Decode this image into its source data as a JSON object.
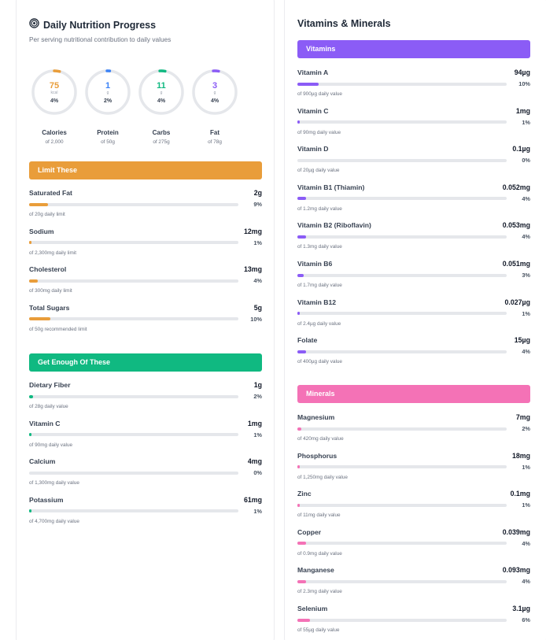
{
  "colors": {
    "orange": "#e99d3a",
    "blue": "#3b82f6",
    "green": "#10b981",
    "purple": "#8b5cf6",
    "pink": "#f472b6",
    "track": "#e5e7eb"
  },
  "left": {
    "title": "Daily Nutrition Progress",
    "title_icon": "target-icon",
    "subtitle": "Per serving nutritional contribution to daily values",
    "rings": [
      {
        "value": "75",
        "unit": "kcal",
        "pct": "4%",
        "pct_num": 4,
        "name": "Calories",
        "of": "of 2,000",
        "color": "#e99d3a"
      },
      {
        "value": "1",
        "unit": "g",
        "pct": "2%",
        "pct_num": 2,
        "name": "Protein",
        "of": "of 50g",
        "color": "#3b82f6"
      },
      {
        "value": "11",
        "unit": "g",
        "pct": "4%",
        "pct_num": 4,
        "name": "Carbs",
        "of": "of 275g",
        "color": "#10b981"
      },
      {
        "value": "3",
        "unit": "g",
        "pct": "4%",
        "pct_num": 4,
        "name": "Fat",
        "of": "of 78g",
        "color": "#8b5cf6"
      }
    ],
    "limit": {
      "header": "Limit These",
      "items": [
        {
          "name": "Saturated Fat",
          "amount": "2g",
          "pct": "9%",
          "pct_num": 9,
          "note": "of 20g daily limit"
        },
        {
          "name": "Sodium",
          "amount": "12mg",
          "pct": "1%",
          "pct_num": 1,
          "note": "of 2,300mg daily limit"
        },
        {
          "name": "Cholesterol",
          "amount": "13mg",
          "pct": "4%",
          "pct_num": 4,
          "note": "of 300mg daily limit"
        },
        {
          "name": "Total Sugars",
          "amount": "5g",
          "pct": "10%",
          "pct_num": 10,
          "note": "of 50g recommended limit"
        }
      ]
    },
    "enough": {
      "header": "Get Enough Of These",
      "items": [
        {
          "name": "Dietary Fiber",
          "amount": "1g",
          "pct": "2%",
          "pct_num": 2,
          "note": "of 28g daily value"
        },
        {
          "name": "Vitamin C",
          "amount": "1mg",
          "pct": "1%",
          "pct_num": 1,
          "note": "of 90mg daily value"
        },
        {
          "name": "Calcium",
          "amount": "4mg",
          "pct": "0%",
          "pct_num": 0,
          "note": "of 1,300mg daily value"
        },
        {
          "name": "Potassium",
          "amount": "61mg",
          "pct": "1%",
          "pct_num": 1,
          "note": "of 4,700mg daily value"
        }
      ]
    }
  },
  "right": {
    "title": "Vitamins & Minerals",
    "vitamins": {
      "header": "Vitamins",
      "items": [
        {
          "name": "Vitamin A",
          "amount": "94µg",
          "pct": "10%",
          "pct_num": 10,
          "note": "of 900µg daily value"
        },
        {
          "name": "Vitamin C",
          "amount": "1mg",
          "pct": "1%",
          "pct_num": 1,
          "note": "of 90mg daily value"
        },
        {
          "name": "Vitamin D",
          "amount": "0.1µg",
          "pct": "0%",
          "pct_num": 0,
          "note": "of 20µg daily value"
        },
        {
          "name": "Vitamin B1 (Thiamin)",
          "amount": "0.052mg",
          "pct": "4%",
          "pct_num": 4,
          "note": "of 1.2mg daily value"
        },
        {
          "name": "Vitamin B2 (Riboflavin)",
          "amount": "0.053mg",
          "pct": "4%",
          "pct_num": 4,
          "note": "of 1.3mg daily value"
        },
        {
          "name": "Vitamin B6",
          "amount": "0.051mg",
          "pct": "3%",
          "pct_num": 3,
          "note": "of 1.7mg daily value"
        },
        {
          "name": "Vitamin B12",
          "amount": "0.027µg",
          "pct": "1%",
          "pct_num": 1,
          "note": "of 2.4µg daily value"
        },
        {
          "name": "Folate",
          "amount": "15µg",
          "pct": "4%",
          "pct_num": 4,
          "note": "of 400µg daily value"
        }
      ]
    },
    "minerals": {
      "header": "Minerals",
      "items": [
        {
          "name": "Magnesium",
          "amount": "7mg",
          "pct": "2%",
          "pct_num": 2,
          "note": "of 420mg daily value"
        },
        {
          "name": "Phosphorus",
          "amount": "18mg",
          "pct": "1%",
          "pct_num": 1,
          "note": "of 1,250mg daily value"
        },
        {
          "name": "Zinc",
          "amount": "0.1mg",
          "pct": "1%",
          "pct_num": 1,
          "note": "of 11mg daily value"
        },
        {
          "name": "Copper",
          "amount": "0.039mg",
          "pct": "4%",
          "pct_num": 4,
          "note": "of 0.9mg daily value"
        },
        {
          "name": "Manganese",
          "amount": "0.093mg",
          "pct": "4%",
          "pct_num": 4,
          "note": "of 2.3mg daily value"
        },
        {
          "name": "Selenium",
          "amount": "3.1µg",
          "pct": "6%",
          "pct_num": 6,
          "note": "of 55µg daily value"
        }
      ]
    }
  }
}
